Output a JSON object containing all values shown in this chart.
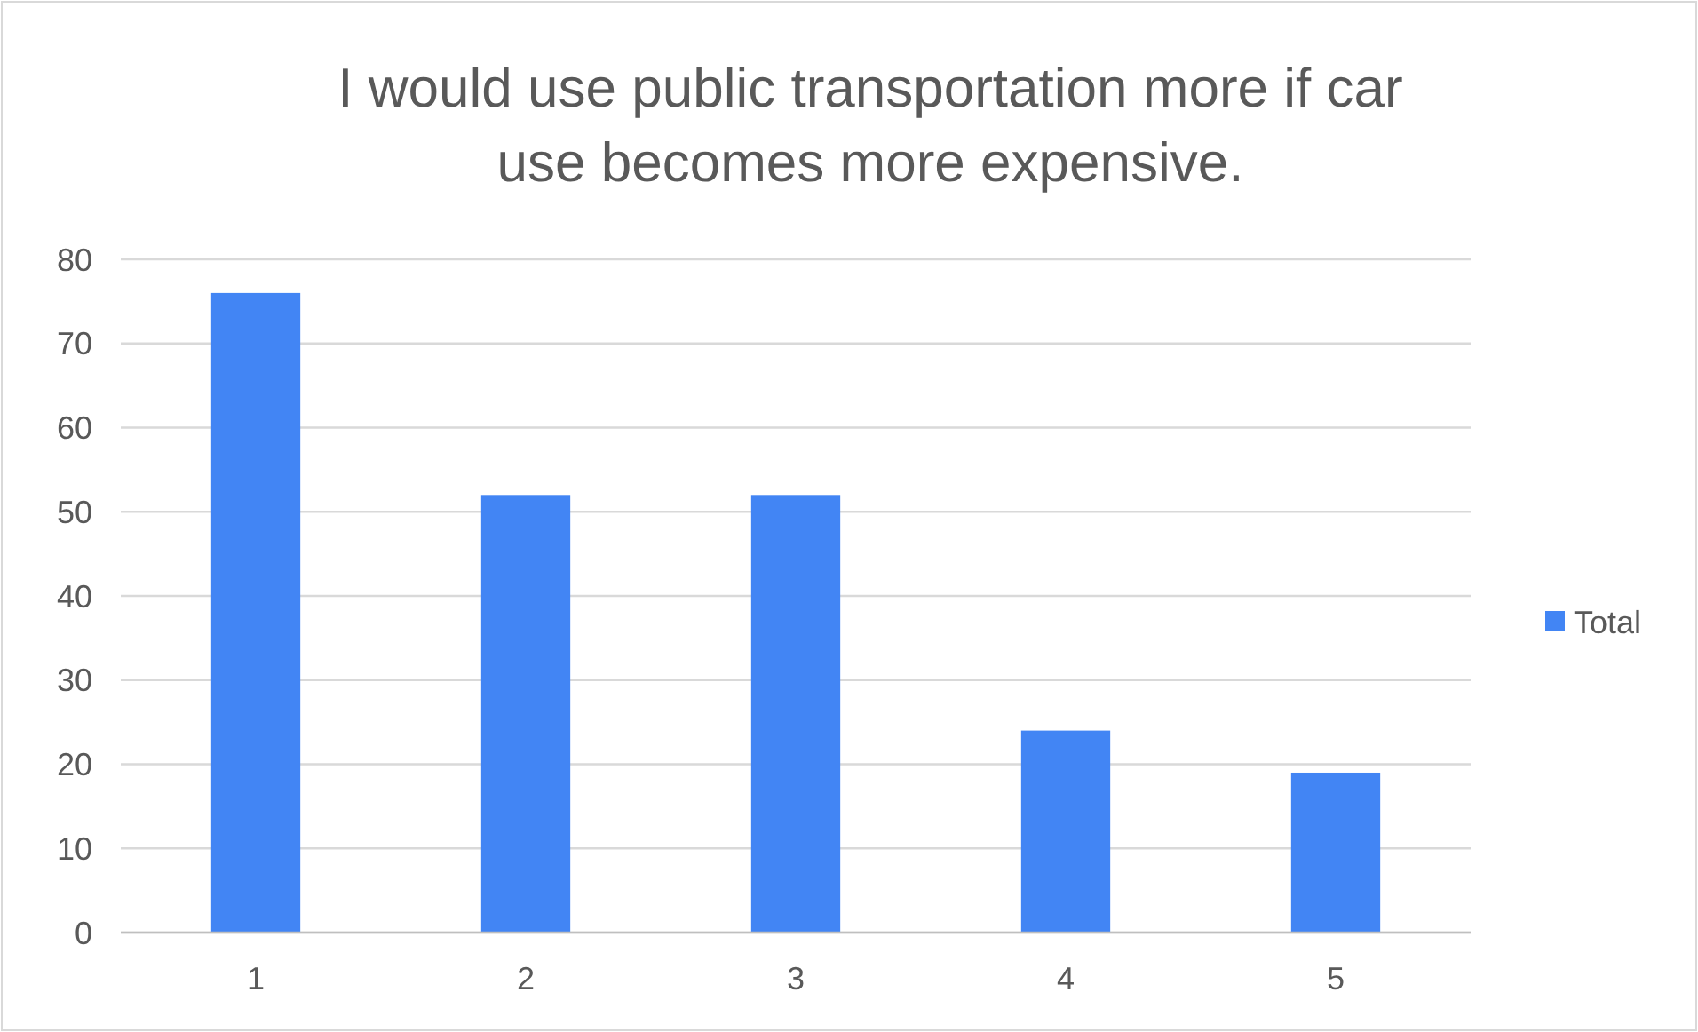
{
  "chart_data": {
    "type": "bar",
    "title": "I would use public transportation more if car use becomes more expensive.",
    "categories": [
      "1",
      "2",
      "3",
      "4",
      "5"
    ],
    "series": [
      {
        "name": "Total",
        "color": "#4285f4",
        "values": [
          76,
          52,
          52,
          24,
          19
        ]
      }
    ],
    "ylim": [
      0,
      80
    ],
    "yticks": [
      0,
      10,
      20,
      30,
      40,
      50,
      60,
      70,
      80
    ],
    "grid": "y",
    "legend": "right"
  }
}
